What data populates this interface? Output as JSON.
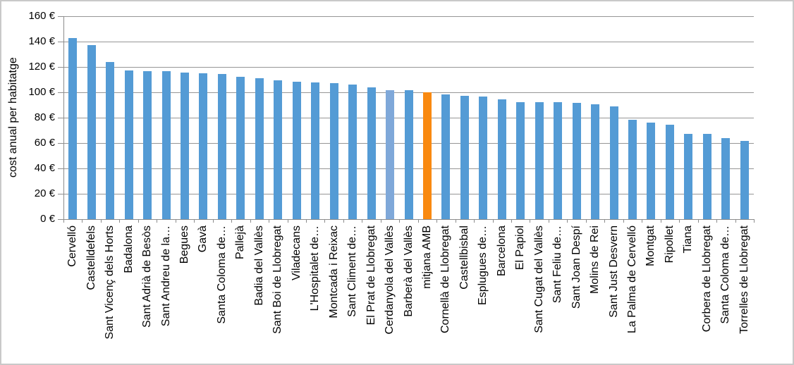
{
  "window": {
    "background": "#ffffff",
    "border_color": "#c9c9c9"
  },
  "chart_data": {
    "type": "bar",
    "title": "",
    "xlabel": "",
    "ylabel": "cost anual per habitatge",
    "ylim": [
      0,
      160
    ],
    "ytick_step": 20,
    "ytick_labels": [
      "0 €",
      "20 €",
      "40 €",
      "60 €",
      "80 €",
      "100 €",
      "120 €",
      "140 €",
      "160 €"
    ],
    "grid": true,
    "legend": false,
    "categories": [
      "Cervelló",
      "Castelldefels",
      "Sant Vicenç dels Horts",
      "Badalona",
      "Sant Adrià de Besòs",
      "Sant Andreu de la…",
      "Begues",
      "Gavà",
      "Santa Coloma de…",
      "Pallejà",
      "Badia del Vallès",
      "Sant Boi de Llobregat",
      "Viladecans",
      "L'Hospitalet de…",
      "Montcada i Reixac",
      "Sant Climent de…",
      "El Prat de Llobregat",
      "Cerdanyola del Vallès",
      "Barberà del Vallès",
      "mitjana AMB",
      "Cornellà de Llobregat",
      "Castellbisbal",
      "Esplugues de…",
      "Barcelona",
      "El Papiol",
      "Sant Cugat del Vallès",
      "Sant Feliu de…",
      "Sant Joan Despí",
      "Molins de Rei",
      "Sant Just Desvern",
      "La Palma de Cervelló",
      "Montgat",
      "Ripollet",
      "Tiana",
      "Corbera de Llobregat",
      "Santa Coloma de…",
      "Torrelles de Llobregat"
    ],
    "values": [
      143,
      137.5,
      124,
      117.5,
      116.5,
      116.5,
      115.5,
      115,
      114.5,
      112,
      111,
      109.5,
      108.5,
      108,
      107,
      106,
      104,
      101.5,
      101.5,
      100,
      98.5,
      97.5,
      96.5,
      94.5,
      92.5,
      92.5,
      92.5,
      91.5,
      90.5,
      89,
      78.5,
      76,
      74.5,
      67.5,
      67,
      64,
      61.5
    ],
    "bar_default_color": "#549bd5",
    "highlight_bars": [
      {
        "index": 17,
        "category": "Cerdanyola del Vallès",
        "color": "#7fa8d9"
      },
      {
        "index": 19,
        "category": "mitjana AMB",
        "color": "#f98910"
      }
    ],
    "axis_color": "#8c8c8c",
    "gridline_color": "#969696",
    "text_color": "#000000"
  }
}
